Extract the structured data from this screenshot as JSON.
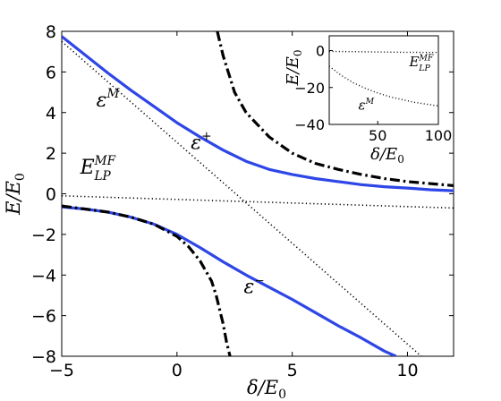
{
  "chart_data": [
    {
      "type": "line",
      "xlabel": "δ/E0",
      "ylabel": "E/E0",
      "xlim": [
        -5,
        12
      ],
      "ylim": [
        -8,
        8
      ],
      "xticks": [
        -5,
        0,
        5,
        10
      ],
      "yticks": [
        -8,
        -6,
        -4,
        -2,
        0,
        2,
        4,
        6,
        8
      ],
      "grid": false,
      "series": [
        {
          "id": "epsilon-plus",
          "name": "ε+",
          "color": "#2e46e6",
          "style": "solid",
          "x": [
            -5,
            -4,
            -3,
            -2,
            -1,
            0,
            1,
            2,
            3,
            4,
            5,
            6,
            7,
            8,
            9,
            10,
            11,
            12
          ],
          "y": [
            7.75,
            6.85,
            5.95,
            5.1,
            4.3,
            3.5,
            2.8,
            2.15,
            1.6,
            1.2,
            0.95,
            0.75,
            0.6,
            0.45,
            0.35,
            0.28,
            0.2,
            0.15
          ]
        },
        {
          "id": "epsilon-minus",
          "name": "ε−",
          "color": "#2e46e6",
          "style": "solid",
          "x": [
            -5,
            -4,
            -3,
            -2,
            -1,
            0,
            1,
            2,
            3,
            4,
            5,
            6,
            7,
            8,
            9,
            9.5
          ],
          "y": [
            -0.65,
            -0.75,
            -0.9,
            -1.15,
            -1.5,
            -2.0,
            -2.65,
            -3.35,
            -4.0,
            -4.6,
            -5.2,
            -5.85,
            -6.5,
            -7.1,
            -7.75,
            -8.0
          ]
        },
        {
          "id": "epsilon-M",
          "name": "εM",
          "color": "#000000",
          "style": "dotted",
          "x": [
            -5,
            10.6
          ],
          "y": [
            7.5,
            -8.0
          ]
        },
        {
          "id": "E-LP-MF",
          "name": "ELP MF",
          "color": "#000000",
          "style": "dotted",
          "x": [
            -5,
            12
          ],
          "y": [
            -0.1,
            -0.7
          ]
        },
        {
          "id": "dashdot-upper",
          "color": "#000000",
          "style": "dashdot",
          "x": [
            1.75,
            2.0,
            2.5,
            3.0,
            4.0,
            5.0,
            6.0,
            7.0,
            8.0,
            9.0,
            10.0,
            12.0
          ],
          "y": [
            8.0,
            6.8,
            5.0,
            4.0,
            2.8,
            2.0,
            1.5,
            1.2,
            0.95,
            0.75,
            0.6,
            0.4
          ]
        },
        {
          "id": "dashdot-lower",
          "color": "#000000",
          "style": "dashdot",
          "x": [
            -5,
            -4,
            -3,
            -2,
            -1,
            0,
            0.5,
            1.0,
            1.5,
            1.7,
            2.0,
            2.15,
            2.3
          ],
          "y": [
            -0.6,
            -0.75,
            -0.9,
            -1.15,
            -1.5,
            -2.1,
            -2.6,
            -3.3,
            -4.3,
            -5.0,
            -6.4,
            -7.3,
            -8.0
          ]
        }
      ],
      "annotations": [
        {
          "id": "eps-M",
          "base": "ε",
          "sup": "M",
          "x": -3.5,
          "y": 4.3
        },
        {
          "id": "eps-plus",
          "base": "ε",
          "sup": "+",
          "x": 0.6,
          "y": 2.2
        },
        {
          "id": "E-LP",
          "base": "E",
          "sup": "MF",
          "sub": "LP",
          "x": -4.2,
          "y": 1.0
        },
        {
          "id": "eps-minus",
          "base": "ε",
          "sup": "−",
          "x": 2.9,
          "y": -4.9
        }
      ]
    },
    {
      "type": "line",
      "role": "inset",
      "xlabel": "δ/E0",
      "ylabel": "E/E0",
      "xlim": [
        10,
        100
      ],
      "ylim": [
        -40,
        8
      ],
      "xticks": [
        50,
        100
      ],
      "yticks": [
        -40,
        -20,
        0
      ],
      "grid": false,
      "series": [
        {
          "id": "inset-E-LP-MF",
          "name": "ELP MF",
          "color": "#000000",
          "style": "dotted",
          "x": [
            10,
            30,
            50,
            70,
            100
          ],
          "y": [
            -0.5,
            -0.6,
            -0.8,
            -0.9,
            -1.0
          ]
        },
        {
          "id": "inset-epsilon-M",
          "name": "εM",
          "color": "#000000",
          "style": "dotted",
          "x": [
            10,
            20,
            30,
            40,
            50,
            60,
            70,
            80,
            90,
            100
          ],
          "y": [
            -8.5,
            -13.5,
            -17.5,
            -20.5,
            -23.0,
            -25.0,
            -26.5,
            -28.0,
            -29.0,
            -30.0
          ]
        }
      ],
      "annotations": [
        {
          "id": "inset-E-LP",
          "base": "E",
          "sup": "MF",
          "sub": "LP",
          "x": 76,
          "y": -8.5
        },
        {
          "id": "inset-eps-M",
          "base": "ε",
          "sup": "M",
          "x": 34,
          "y": -32
        }
      ]
    }
  ]
}
